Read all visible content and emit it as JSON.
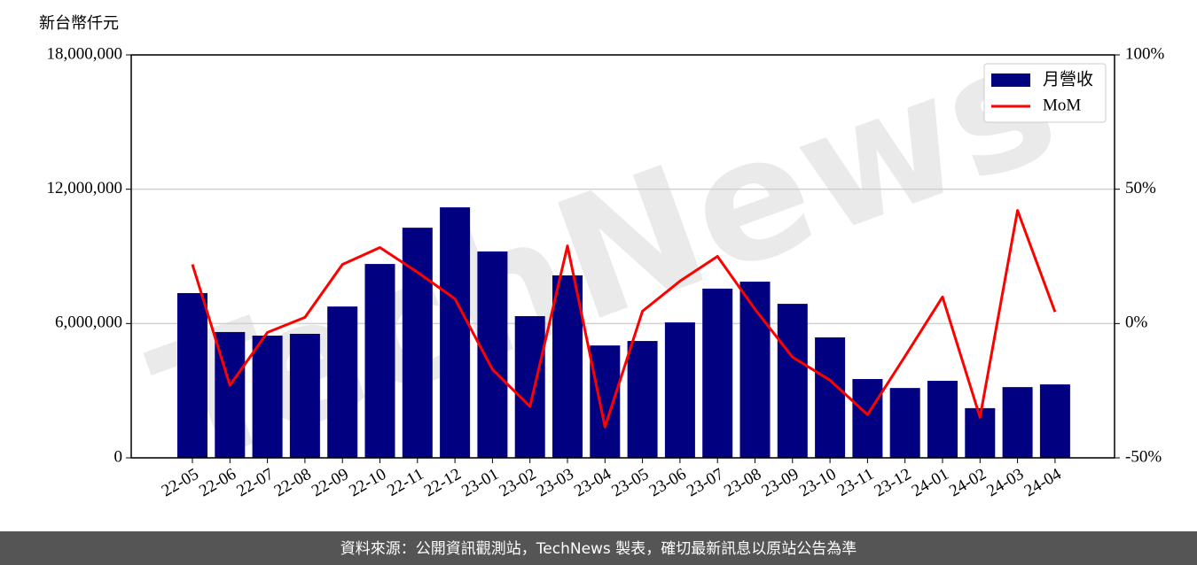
{
  "chart_data": {
    "type": "combo",
    "y_label": "新台幣仟元",
    "categories": [
      "22-05",
      "22-06",
      "22-07",
      "22-08",
      "22-09",
      "22-10",
      "22-11",
      "22-12",
      "23-01",
      "23-02",
      "23-03",
      "23-04",
      "23-05",
      "23-06",
      "23-07",
      "23-08",
      "23-09",
      "23-10",
      "23-11",
      "23-12",
      "24-01",
      "24-02",
      "24-03",
      "24-04"
    ],
    "series": [
      {
        "name": "月營收",
        "type": "bar",
        "color": "#000080",
        "values": [
          7360000,
          5620000,
          5460000,
          5540000,
          6760000,
          8660000,
          10280000,
          11190000,
          9220000,
          6330000,
          8150000,
          5020000,
          5220000,
          6050000,
          7560000,
          7870000,
          6880000,
          5380000,
          3520000,
          3120000,
          3440000,
          2220000,
          3160000,
          3280000
        ]
      },
      {
        "name": "MoM",
        "type": "line",
        "color": "#ff0000",
        "axis": "y2",
        "values": [
          22.0,
          -23.0,
          -3.3,
          2.3,
          22.0,
          28.3,
          19.1,
          9.2,
          -17.1,
          -30.9,
          28.9,
          -38.5,
          4.6,
          15.8,
          25.0,
          5.3,
          -12.5,
          -21.1,
          -33.9,
          -12.2,
          9.9,
          -34.9,
          42.1,
          4.3
        ]
      }
    ],
    "ylim": [
      0,
      18000000
    ],
    "yticks": [
      {
        "value": 0,
        "label": "0"
      },
      {
        "value": 6000000,
        "label": "6,000,000"
      },
      {
        "value": 12000000,
        "label": "12,000,000"
      },
      {
        "value": 18000000,
        "label": "18,000,000"
      }
    ],
    "y2lim": [
      -50,
      100
    ],
    "y2ticks": [
      {
        "value": -50,
        "label": "-50%"
      },
      {
        "value": 0,
        "label": "0%"
      },
      {
        "value": 50,
        "label": "50%"
      },
      {
        "value": 100,
        "label": "100%"
      }
    ],
    "grid": true,
    "legend": "upper right",
    "watermark": "TechNews",
    "footer": "資料來源：公開資訊觀測站，TechNews 製表，確切最新訊息以原站公告為準"
  }
}
